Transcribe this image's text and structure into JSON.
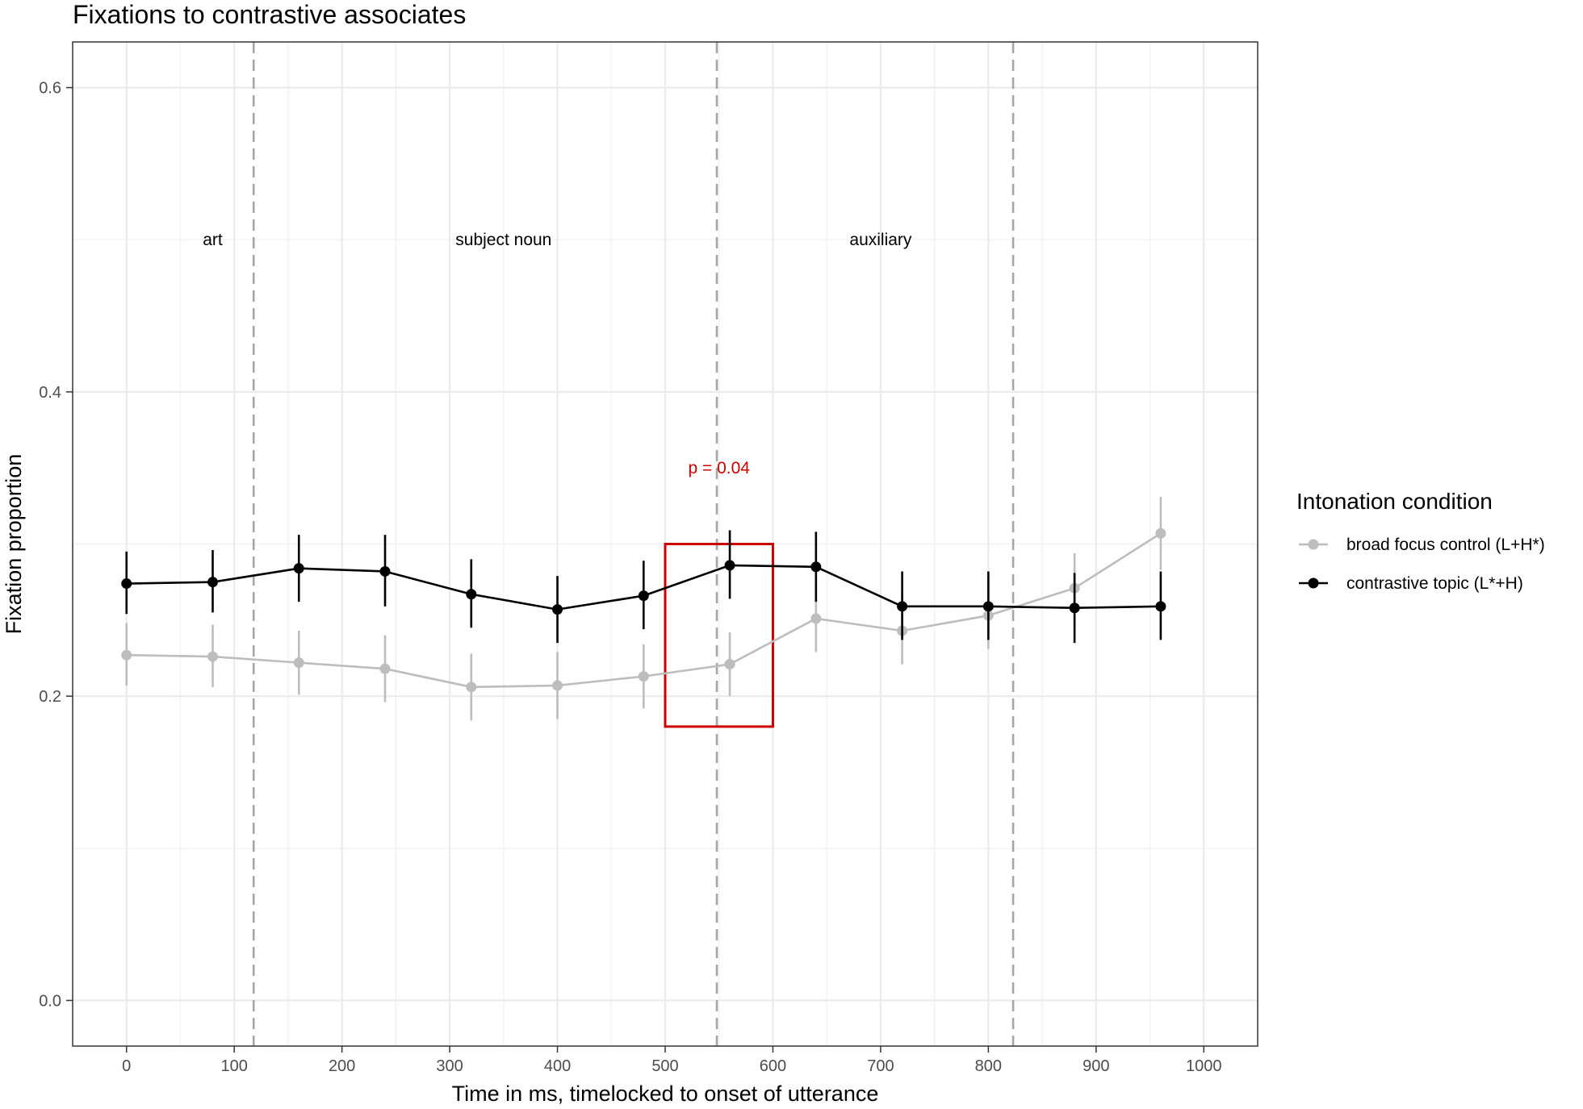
{
  "chart_data": {
    "type": "line",
    "title": "Fixations to contrastive associates",
    "xlabel": "Time in ms, timelocked to onset of utterance",
    "ylabel": "Fixation proportion",
    "xlim": [
      -50,
      1050
    ],
    "ylim": [
      -0.03,
      0.63
    ],
    "x_ticks": [
      0,
      100,
      200,
      300,
      400,
      500,
      600,
      700,
      800,
      900,
      1000
    ],
    "y_ticks": [
      0.0,
      0.2,
      0.4,
      0.6
    ],
    "y_tick_labels": [
      "0.0",
      "0.2",
      "0.4",
      "0.6"
    ],
    "grid": true,
    "legend": {
      "title": "Intonation condition",
      "position": "right"
    },
    "x": [
      0,
      80,
      160,
      240,
      320,
      400,
      480,
      560,
      640,
      720,
      800,
      880,
      960
    ],
    "series": [
      {
        "name": "broad focus control (L+H*)",
        "color": "#bdbdbd",
        "values": [
          0.227,
          0.226,
          0.222,
          0.218,
          0.206,
          0.207,
          0.213,
          0.221,
          0.251,
          0.243,
          0.253,
          0.271,
          0.307
        ],
        "error_low": [
          0.207,
          0.206,
          0.201,
          0.196,
          0.184,
          0.185,
          0.192,
          0.2,
          0.229,
          0.221,
          0.231,
          0.249,
          0.283
        ],
        "error_high": [
          0.248,
          0.247,
          0.243,
          0.24,
          0.228,
          0.229,
          0.234,
          0.242,
          0.273,
          0.265,
          0.275,
          0.294,
          0.331
        ]
      },
      {
        "name": "contrastive topic (L*+H)",
        "color": "#000000",
        "values": [
          0.274,
          0.275,
          0.284,
          0.282,
          0.267,
          0.257,
          0.266,
          0.286,
          0.285,
          0.259,
          0.259,
          0.258,
          0.259
        ],
        "error_low": [
          0.254,
          0.255,
          0.262,
          0.259,
          0.245,
          0.235,
          0.244,
          0.264,
          0.262,
          0.237,
          0.237,
          0.235,
          0.237
        ],
        "error_high": [
          0.295,
          0.296,
          0.306,
          0.306,
          0.29,
          0.279,
          0.289,
          0.309,
          0.308,
          0.282,
          0.282,
          0.281,
          0.282
        ]
      }
    ],
    "segment_boundaries": [
      118,
      548,
      823
    ],
    "segment_labels": [
      {
        "text": "art",
        "x": 80
      },
      {
        "text": "subject noun",
        "x": 350
      },
      {
        "text": "auxiliary",
        "x": 700
      }
    ],
    "segment_label_y": 0.5,
    "highlight": {
      "x_range": [
        500,
        600
      ],
      "y_range": [
        0.18,
        0.3
      ],
      "label": "p = 0.04",
      "label_x": 550,
      "label_y": 0.35,
      "color": "#cc0000"
    }
  }
}
